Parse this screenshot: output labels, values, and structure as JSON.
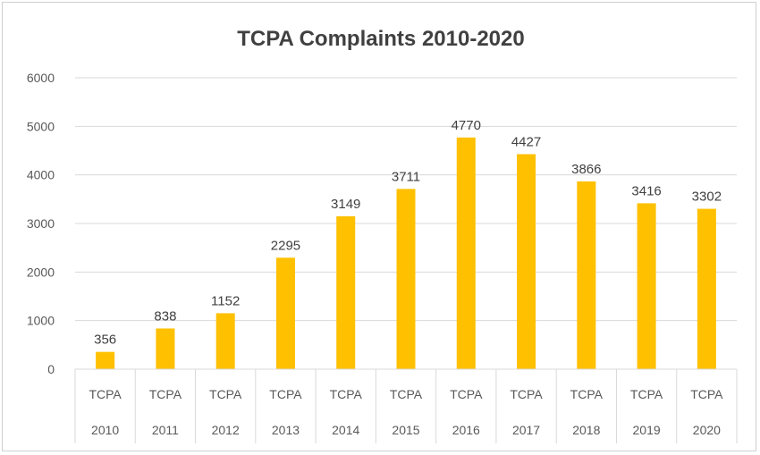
{
  "chart_data": {
    "type": "bar",
    "title": "TCPA Complaints 2010-2020",
    "categories": [
      [
        "TCPA",
        "2010"
      ],
      [
        "TCPA",
        "2011"
      ],
      [
        "TCPA",
        "2012"
      ],
      [
        "TCPA",
        "2013"
      ],
      [
        "TCPA",
        "2014"
      ],
      [
        "TCPA",
        "2015"
      ],
      [
        "TCPA",
        "2016"
      ],
      [
        "TCPA",
        "2017"
      ],
      [
        "TCPA",
        "2018"
      ],
      [
        "TCPA",
        "2019"
      ],
      [
        "TCPA",
        "2020"
      ]
    ],
    "values": [
      356,
      838,
      1152,
      2295,
      3149,
      3711,
      4770,
      4427,
      3866,
      3416,
      3302
    ],
    "ylim": [
      0,
      6000
    ],
    "yticks": [
      0,
      1000,
      2000,
      3000,
      4000,
      5000,
      6000
    ],
    "grid": true,
    "legend": "none",
    "bar_color": "#FFC000",
    "grid_color": "#D9D9D9"
  }
}
